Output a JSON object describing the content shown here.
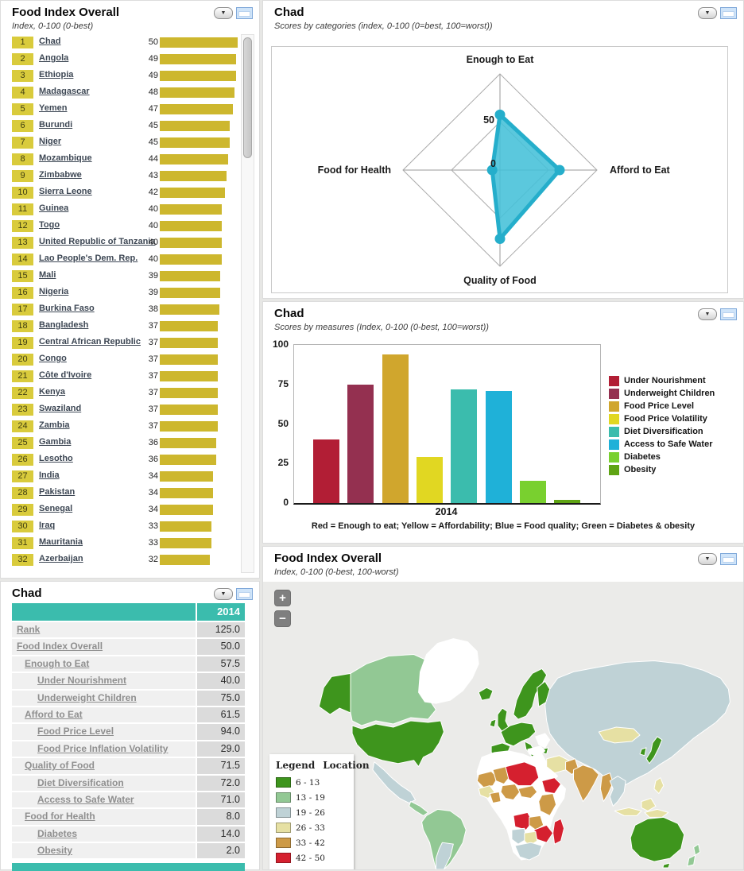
{
  "ranking_panel": {
    "title": "Food Index Overall",
    "subtitle": "Index, 0-100 (0-best)"
  },
  "detail_table": {
    "title": "Chad",
    "year_header": "2014",
    "header_color": "#3BBCAD",
    "rows": [
      {
        "label": "Rank",
        "indent": 0,
        "value": "125.0"
      },
      {
        "label": "Food Index Overall",
        "indent": 0,
        "value": "50.0"
      },
      {
        "label": "Enough to Eat",
        "indent": 1,
        "value": "57.5"
      },
      {
        "label": "Under Nourishment",
        "indent": 2,
        "value": "40.0"
      },
      {
        "label": "Underweight Children",
        "indent": 2,
        "value": "75.0"
      },
      {
        "label": "Afford to Eat",
        "indent": 1,
        "value": "61.5"
      },
      {
        "label": "Food Price Level",
        "indent": 2,
        "value": "94.0"
      },
      {
        "label": "Food Price Inflation Volatility",
        "indent": 2,
        "value": "29.0"
      },
      {
        "label": "Quality of Food",
        "indent": 1,
        "value": "71.5"
      },
      {
        "label": "Diet Diversification",
        "indent": 2,
        "value": "72.0"
      },
      {
        "label": "Access to Safe Water",
        "indent": 2,
        "value": "71.0"
      },
      {
        "label": "Food for Health",
        "indent": 1,
        "value": "8.0"
      },
      {
        "label": "Diabetes",
        "indent": 2,
        "value": "14.0"
      },
      {
        "label": "Obesity",
        "indent": 2,
        "value": "2.0"
      }
    ]
  },
  "radar_panel": {
    "title": "Chad",
    "subtitle": "Scores by categories (index, 0-100 (0=best, 100=worst))",
    "tick_50": "50",
    "tick_0": "0"
  },
  "measures_panel": {
    "title": "Chad",
    "subtitle": "Scores by measures (Index, 0-100 (0-best, 100=worst))",
    "x_label": "2014",
    "footnote": "Red = Enough to eat; Yellow = Affordability; Blue = Food quality; Green = Diabetes & obesity"
  },
  "map_panel": {
    "title": "Food Index Overall",
    "subtitle": "Index, 0-100 (0-best, 100-worst)",
    "zoom_in": "+",
    "zoom_out": "−",
    "legend_title": "Legend",
    "location_title": "Location"
  },
  "chart_data": [
    {
      "id": "ranking",
      "type": "bar",
      "orientation": "horizontal",
      "title": "Food Index Overall",
      "axis_note": "Index, 0-100 (0-best)",
      "xlim": [
        0,
        50
      ],
      "bar_color": "#CDB72E",
      "badge_color": "#D9CB3C",
      "ranks": [
        1,
        2,
        3,
        4,
        5,
        6,
        7,
        8,
        9,
        10,
        11,
        12,
        13,
        14,
        15,
        16,
        17,
        18,
        19,
        20,
        21,
        22,
        23,
        24,
        25,
        26,
        27,
        28,
        29,
        30,
        31,
        32
      ],
      "categories": [
        "Chad",
        "Angola",
        "Ethiopia",
        "Madagascar",
        "Yemen",
        "Burundi",
        "Niger",
        "Mozambique",
        "Zimbabwe",
        "Sierra Leone",
        "Guinea",
        "Togo",
        "United Republic of Tanzania",
        "Lao People's Dem. Rep.",
        "Mali",
        "Nigeria",
        "Burkina Faso",
        "Bangladesh",
        "Central African Republic",
        "Congo",
        "Côte d'Ivoire",
        "Kenya",
        "Swaziland",
        "Zambia",
        "Gambia",
        "Lesotho",
        "India",
        "Pakistan",
        "Senegal",
        "Iraq",
        "Mauritania",
        "Azerbaijan"
      ],
      "values": [
        50,
        49,
        49,
        48,
        47,
        45,
        45,
        44,
        43,
        42,
        40,
        40,
        40,
        40,
        39,
        39,
        38,
        37,
        37,
        37,
        37,
        37,
        37,
        37,
        36,
        36,
        34,
        34,
        34,
        33,
        33,
        32
      ]
    },
    {
      "id": "radar",
      "type": "radar",
      "title": "Chad — scores by categories",
      "categories": [
        "Enough to Eat",
        "Afford to Eat",
        "Quality of Food",
        "Food for Health"
      ],
      "values": [
        57.5,
        61.5,
        71.5,
        8.0
      ],
      "rlim": [
        0,
        100
      ],
      "ticks_labeled": [
        0,
        50
      ],
      "color": "#25AECB",
      "fill": "#44C0D8"
    },
    {
      "id": "measures",
      "type": "bar",
      "title": "Chad — scores by measures",
      "x": "2014",
      "ylim": [
        0,
        100
      ],
      "yticks": [
        100,
        75,
        50,
        25,
        0
      ],
      "legend_position": "right",
      "categories": [
        "Under Nourishment",
        "Underweight Children",
        "Food Price Level",
        "Food Price Volatility",
        "Diet Diversification",
        "Access to Safe Water",
        "Diabetes",
        "Obesity"
      ],
      "values": [
        40,
        75,
        94,
        29,
        72,
        71,
        14,
        2
      ],
      "colors": [
        "#B21E35",
        "#943050",
        "#D0A62D",
        "#E1D722",
        "#3BBCAD",
        "#1FB1D8",
        "#79D02F",
        "#5FA414"
      ]
    },
    {
      "id": "choropleth",
      "type": "heatmap",
      "title": "Food Index Overall — world map",
      "legend": [
        {
          "range": "6 - 13",
          "color": "#3E951D"
        },
        {
          "range": "13 - 19",
          "color": "#92C894"
        },
        {
          "range": "19 - 26",
          "color": "#BFD2D6"
        },
        {
          "range": "26 - 33",
          "color": "#E6E0A3"
        },
        {
          "range": "33 - 42",
          "color": "#CD9A47"
        },
        {
          "range": "42 - 50",
          "color": "#D5202F"
        }
      ]
    }
  ]
}
